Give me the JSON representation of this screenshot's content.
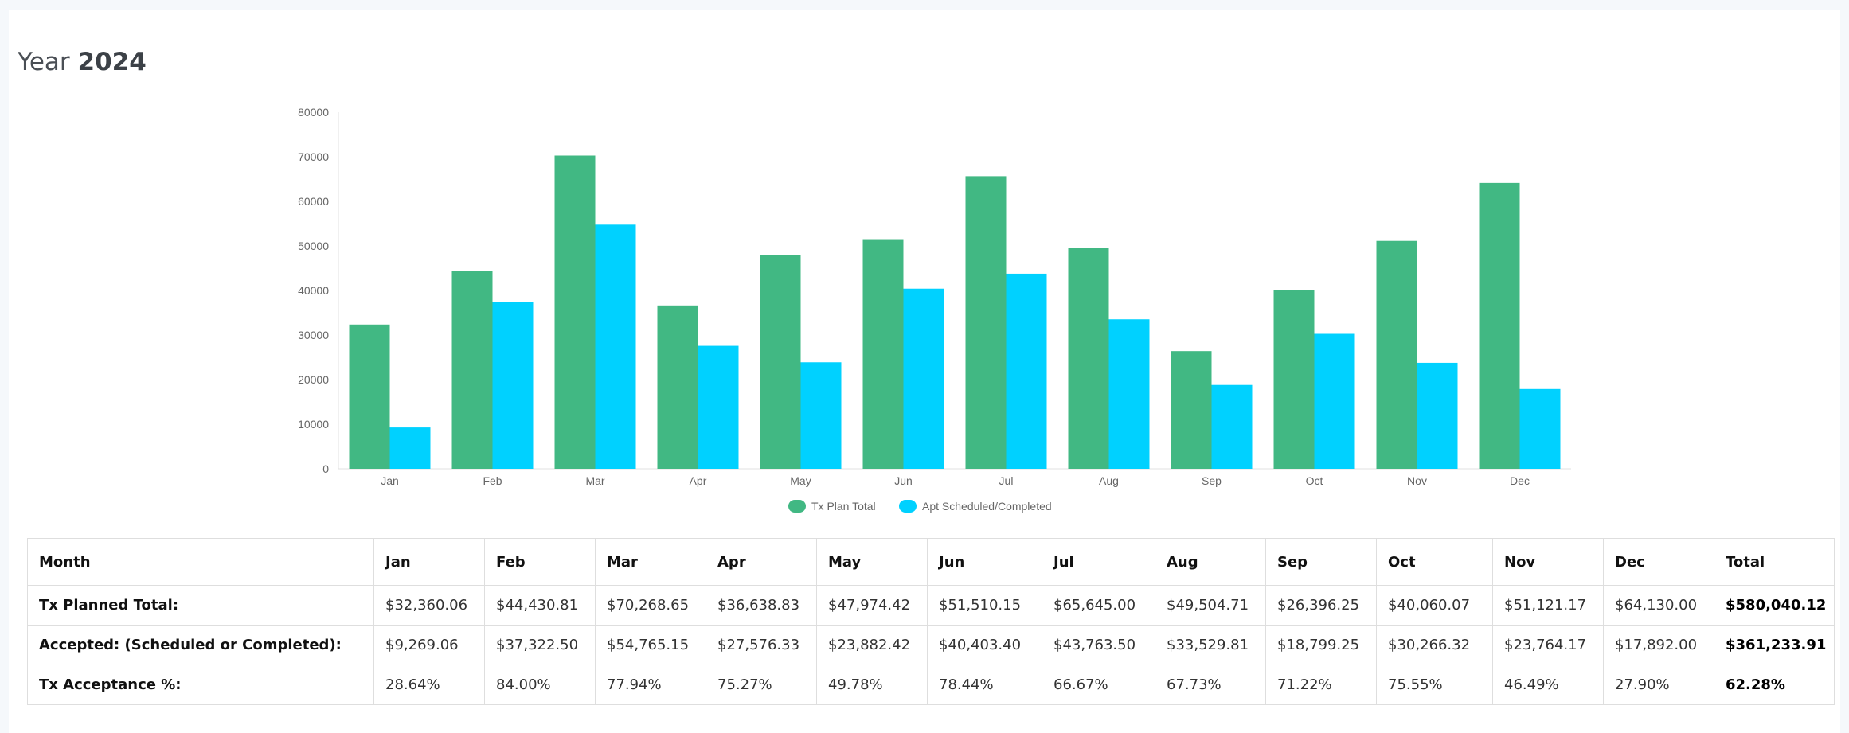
{
  "header": {
    "prefix": "Year",
    "year": "2024"
  },
  "colors": {
    "planned": "#41b883",
    "accepted": "#00d1ff"
  },
  "chart_data": {
    "type": "bar",
    "categories": [
      "Jan",
      "Feb",
      "Mar",
      "Apr",
      "May",
      "Jun",
      "Jul",
      "Aug",
      "Sep",
      "Oct",
      "Nov",
      "Dec"
    ],
    "series": [
      {
        "name": "Tx Plan Total",
        "values": [
          32360.06,
          44430.81,
          70268.65,
          36638.83,
          47974.42,
          51510.15,
          65645.0,
          49504.71,
          26396.25,
          40060.07,
          51121.17,
          64130.0
        ]
      },
      {
        "name": "Apt Scheduled/Completed",
        "values": [
          9269.06,
          37322.5,
          54765.15,
          27576.33,
          23882.42,
          40403.4,
          43763.5,
          33529.81,
          18799.25,
          30266.32,
          23764.17,
          17892.0
        ]
      }
    ],
    "yticks": [
      "0",
      "10000",
      "20000",
      "30000",
      "40000",
      "50000",
      "60000",
      "70000",
      "80000"
    ],
    "ylim": [
      0,
      80000
    ],
    "legend": "bottom"
  },
  "table": {
    "headers": [
      "Month",
      "Jan",
      "Feb",
      "Mar",
      "Apr",
      "May",
      "Jun",
      "Jul",
      "Aug",
      "Sep",
      "Oct",
      "Nov",
      "Dec",
      "Total"
    ],
    "rows": [
      [
        "Tx Planned Total:",
        "$32,360.06",
        "$44,430.81",
        "$70,268.65",
        "$36,638.83",
        "$47,974.42",
        "$51,510.15",
        "$65,645.00",
        "$49,504.71",
        "$26,396.25",
        "$40,060.07",
        "$51,121.17",
        "$64,130.00",
        "$580,040.12"
      ],
      [
        "Accepted: (Scheduled or Completed):",
        "$9,269.06",
        "$37,322.50",
        "$54,765.15",
        "$27,576.33",
        "$23,882.42",
        "$40,403.40",
        "$43,763.50",
        "$33,529.81",
        "$18,799.25",
        "$30,266.32",
        "$23,764.17",
        "$17,892.00",
        "$361,233.91"
      ],
      [
        "Tx Acceptance %:",
        "28.64%",
        "84.00%",
        "77.94%",
        "75.27%",
        "49.78%",
        "78.44%",
        "66.67%",
        "67.73%",
        "71.22%",
        "75.55%",
        "46.49%",
        "27.90%",
        "62.28%"
      ]
    ]
  }
}
